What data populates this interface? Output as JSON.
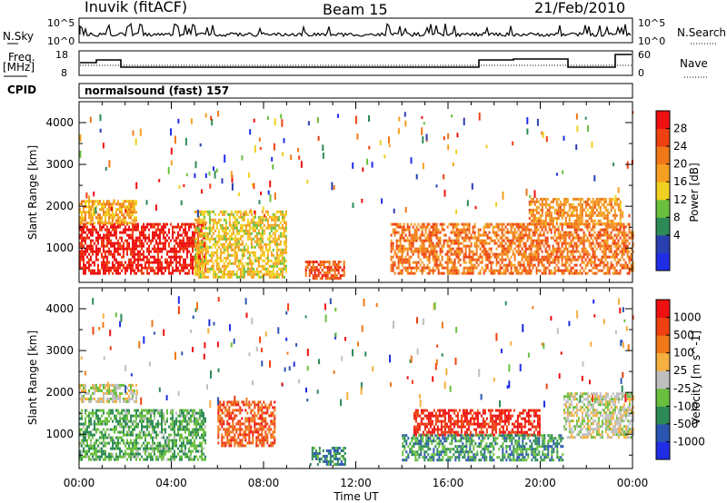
{
  "header": {
    "station": "Inuvik (fitACF)",
    "beam": "Beam 15",
    "date": "21/Feb/2010"
  },
  "top_strip": {
    "left_label": "N.Sky",
    "left_ticks": [
      "10^5",
      "10^0"
    ],
    "right_label": "N.Search",
    "right_ticks": [
      "10^5",
      "10^0"
    ]
  },
  "freq_strip": {
    "left_label_line1": "Freq.",
    "left_label_line2": "[MHz]",
    "left_ticks": [
      "18",
      "8"
    ],
    "right_label": "Nave",
    "right_ticks": [
      "60",
      "0"
    ]
  },
  "cpid": {
    "label": "CPID",
    "value": "normalsound (fast) 157"
  },
  "panels": {
    "power": {
      "ylabel": "Slant Range [km]",
      "yticks": [
        "4000",
        "3000",
        "2000",
        "1000"
      ],
      "colorbar_label": "Power [dB]",
      "colorbar_ticks": [
        "28",
        "24",
        "20",
        "16",
        "12",
        "8",
        "4"
      ],
      "colors": [
        "#1f2ee6",
        "#2a3fb0",
        "#2e8b57",
        "#6abf3f",
        "#f0d020",
        "#f5a020",
        "#f07818",
        "#ee4010",
        "#ee1010"
      ]
    },
    "velocity": {
      "ylabel": "Slant Range [km]",
      "yticks": [
        "4000",
        "3000",
        "2000",
        "1000"
      ],
      "colorbar_label": "Velocity [m s^-1]",
      "colorbar_ticks": [
        "1000",
        "500",
        "100",
        "25",
        "-25",
        "-100",
        "-500",
        "-1000"
      ],
      "colors": [
        "#1f2ee6",
        "#2a55b0",
        "#2e8b57",
        "#6abf3f",
        "#bfbfbf",
        "#f5b040",
        "#f07818",
        "#ee4010",
        "#ee1010"
      ]
    }
  },
  "xaxis": {
    "label": "Time UT",
    "ticks": [
      "00:00",
      "04:00",
      "08:00",
      "12:00",
      "16:00",
      "20:00",
      "00:00"
    ]
  },
  "chart_data": {
    "type": "heatmap",
    "title": "Inuvik (fitACF)   Beam 15   21/Feb/2010",
    "xlabel": "Time UT",
    "ylabel": "Slant Range [km]",
    "x_range_hours": [
      0,
      24
    ],
    "y_range_km": [
      180,
      4500
    ],
    "panels": [
      {
        "name": "Power",
        "units": "dB",
        "colorbar_range": [
          0,
          30
        ],
        "regions": [
          {
            "t_start": 0.0,
            "t_end": 5.5,
            "r_start": 400,
            "r_end": 1600,
            "value": 28
          },
          {
            "t_start": 0.0,
            "t_end": 2.5,
            "r_start": 1600,
            "r_end": 2150,
            "value": 18
          },
          {
            "t_start": 5.0,
            "t_end": 9.0,
            "r_start": 300,
            "r_end": 1900,
            "value": 16
          },
          {
            "t_start": 9.8,
            "t_end": 11.5,
            "r_start": 250,
            "r_end": 700,
            "value": 24
          },
          {
            "t_start": 13.5,
            "t_end": 24.0,
            "r_start": 400,
            "r_end": 1600,
            "value": 22
          },
          {
            "t_start": 19.5,
            "t_end": 23.5,
            "r_start": 1600,
            "r_end": 2200,
            "value": 20
          }
        ]
      },
      {
        "name": "Velocity",
        "units": "m s^-1",
        "colorbar_range": [
          -1000,
          1000
        ],
        "regions": [
          {
            "t_start": 0.0,
            "t_end": 5.5,
            "r_start": 400,
            "r_end": 1600,
            "value": -300
          },
          {
            "t_start": 0.0,
            "t_end": 2.5,
            "r_start": 1800,
            "r_end": 2200,
            "value": 0
          },
          {
            "t_start": 6.0,
            "t_end": 8.5,
            "r_start": 700,
            "r_end": 1800,
            "value": 600
          },
          {
            "t_start": 10.0,
            "t_end": 11.5,
            "r_start": 250,
            "r_end": 700,
            "value": -500
          },
          {
            "t_start": 14.5,
            "t_end": 20.0,
            "r_start": 1000,
            "r_end": 1600,
            "value": 800
          },
          {
            "t_start": 14.0,
            "t_end": 21.0,
            "r_start": 400,
            "r_end": 1000,
            "value": -400
          },
          {
            "t_start": 21.0,
            "t_end": 24.0,
            "r_start": 900,
            "r_end": 2000,
            "value": 0
          }
        ]
      }
    ]
  }
}
